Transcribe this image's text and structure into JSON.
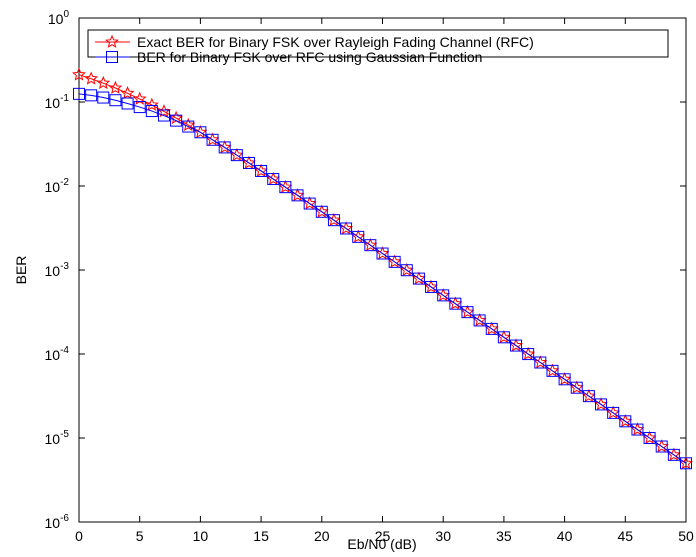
{
  "chart_data": {
    "type": "line",
    "x_label": "Eb/N0 (dB)",
    "y_label": "BER",
    "log_y": true,
    "x": [
      0,
      1,
      2,
      3,
      4,
      5,
      6,
      7,
      8,
      9,
      10,
      11,
      12,
      13,
      14,
      15,
      16,
      17,
      18,
      19,
      20,
      21,
      22,
      23,
      24,
      25,
      26,
      27,
      28,
      29,
      30,
      31,
      32,
      33,
      34,
      35,
      36,
      37,
      38,
      39,
      40,
      41,
      42,
      43,
      44,
      45,
      46,
      47,
      48,
      49,
      50
    ],
    "series": [
      {
        "name": "Exact BER for Binary FSK over Rayleigh Fading Channel (RFC)",
        "color": "#ff0000",
        "marker": "star",
        "values": [
          0.2113,
          0.1892,
          0.1675,
          0.1467,
          0.1269,
          0.1087,
          0.0921,
          0.0773,
          0.0643,
          0.0531,
          0.0436,
          0.0355,
          0.0288,
          0.0233,
          0.0188,
          0.0151,
          0.0121,
          0.00969,
          0.00774,
          0.00618,
          0.00493,
          0.00392,
          0.00312,
          0.00248,
          0.001975,
          0.001571,
          0.00125,
          0.000994,
          0.00079,
          0.000628,
          0.000499,
          0.000397,
          0.000315,
          0.000251,
          0.000199,
          0.000158,
          0.000126,
          9.98e-05,
          7.92e-05,
          6.3e-05,
          5e-05,
          3.97e-05,
          3.15e-05,
          2.51e-05,
          1.99e-05,
          1.58e-05,
          1.26e-05,
          1e-05,
          7.92e-06,
          6.3e-06,
          5e-06
        ]
      },
      {
        "name": "BER for Binary FSK over RFC using Gaussian Function",
        "color": "#0000ff",
        "marker": "square",
        "values": [
          0.125,
          0.12,
          0.113,
          0.105,
          0.096,
          0.087,
          0.078,
          0.069,
          0.06,
          0.051,
          0.0436,
          0.0355,
          0.0288,
          0.0233,
          0.0188,
          0.0151,
          0.0121,
          0.00969,
          0.00774,
          0.00618,
          0.00493,
          0.00392,
          0.00312,
          0.00248,
          0.001975,
          0.001571,
          0.00125,
          0.000994,
          0.00079,
          0.000628,
          0.000499,
          0.000397,
          0.000315,
          0.000251,
          0.000199,
          0.000158,
          0.000126,
          9.98e-05,
          7.92e-05,
          6.3e-05,
          5e-05,
          3.97e-05,
          3.15e-05,
          2.51e-05,
          1.99e-05,
          1.58e-05,
          1.26e-05,
          1e-05,
          7.92e-06,
          6.3e-06,
          5e-06
        ]
      }
    ],
    "xlim": [
      0,
      50
    ],
    "xticks": [
      0,
      5,
      10,
      15,
      20,
      25,
      30,
      35,
      40,
      45,
      50
    ],
    "ylim": [
      1e-06,
      1
    ],
    "yticks": [
      {
        "value": 1e-06,
        "base": "10",
        "exponent": "-6"
      },
      {
        "value": 1e-05,
        "base": "10",
        "exponent": "-5"
      },
      {
        "value": 0.0001,
        "base": "10",
        "exponent": "-4"
      },
      {
        "value": 0.001,
        "base": "10",
        "exponent": "-3"
      },
      {
        "value": 0.01,
        "base": "10",
        "exponent": "-2"
      },
      {
        "value": 0.1,
        "base": "10",
        "exponent": "-1"
      },
      {
        "value": 1,
        "base": "10",
        "exponent": "0"
      }
    ],
    "legend": "top-right",
    "grid": false
  }
}
